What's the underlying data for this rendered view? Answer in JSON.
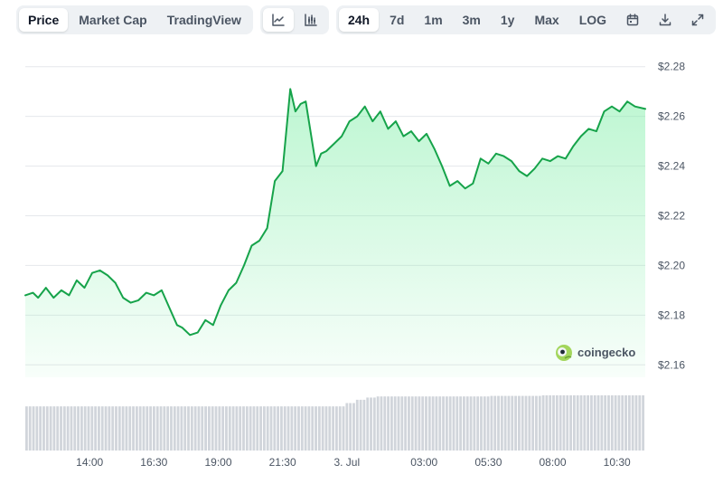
{
  "toolbar": {
    "views": [
      {
        "label": "Price",
        "active": true
      },
      {
        "label": "Market Cap",
        "active": false
      },
      {
        "label": "TradingView",
        "active": false
      }
    ],
    "chart_types": [
      {
        "icon": "line-chart-icon",
        "active": true
      },
      {
        "icon": "candlestick-chart-icon",
        "active": false
      }
    ],
    "ranges": [
      {
        "label": "24h",
        "active": true
      },
      {
        "label": "7d",
        "active": false
      },
      {
        "label": "1m",
        "active": false
      },
      {
        "label": "3m",
        "active": false
      },
      {
        "label": "1y",
        "active": false
      },
      {
        "label": "Max",
        "active": false
      },
      {
        "label": "LOG",
        "active": false
      }
    ],
    "actions": [
      "calendar-icon",
      "download-icon",
      "expand-icon"
    ]
  },
  "watermark": {
    "text": "coingecko"
  },
  "colors": {
    "line": "#16a34a",
    "fill": "#86efac",
    "volume": "#d1d5db",
    "grid": "#e5e7eb"
  },
  "chart_data": {
    "type": "area",
    "title": "",
    "xlabel": "",
    "ylabel": "",
    "ylim": [
      2.155,
      2.285
    ],
    "yticks": [
      "$2.28",
      "$2.26",
      "$2.24",
      "$2.22",
      "$2.20",
      "$2.18",
      "$2.16"
    ],
    "ytick_values": [
      2.28,
      2.26,
      2.24,
      2.22,
      2.2,
      2.18,
      2.16
    ],
    "xticks": [
      "14:00",
      "16:30",
      "19:00",
      "21:30",
      "3. Jul",
      "03:00",
      "05:30",
      "08:00",
      "10:30"
    ],
    "xtick_hours": [
      14,
      16.5,
      19,
      21.5,
      24,
      27,
      29.5,
      32,
      34.5
    ],
    "x_range_hours": [
      11.5,
      35.6
    ],
    "grid": true,
    "series": [
      {
        "x": [
          11.5,
          11.8,
          12.0,
          12.3,
          12.6,
          12.9,
          13.2,
          13.5,
          13.8,
          14.1,
          14.4,
          14.7,
          15.0,
          15.3,
          15.6,
          15.9,
          16.2,
          16.5,
          16.8,
          17.1,
          17.4,
          17.6,
          17.9,
          18.2,
          18.5,
          18.8,
          19.1,
          19.4,
          19.7,
          20.0,
          20.3,
          20.6,
          20.9,
          21.2,
          21.5,
          21.8,
          22.0,
          22.2,
          22.4,
          22.6,
          22.8,
          23.0,
          23.2,
          23.5,
          23.8,
          24.1,
          24.4,
          24.7,
          25.0,
          25.3,
          25.6,
          25.9,
          26.2,
          26.5,
          26.8,
          27.1,
          27.4,
          27.7,
          28.0,
          28.3,
          28.6,
          28.9,
          29.2,
          29.5,
          29.8,
          30.1,
          30.4,
          30.7,
          31.0,
          31.3,
          31.6,
          31.9,
          32.2,
          32.5,
          32.8,
          33.1,
          33.4,
          33.7,
          34.0,
          34.3,
          34.6,
          34.9,
          35.2,
          35.6
        ],
        "values": [
          2.188,
          2.189,
          2.187,
          2.191,
          2.187,
          2.19,
          2.188,
          2.194,
          2.191,
          2.197,
          2.198,
          2.196,
          2.193,
          2.187,
          2.185,
          2.186,
          2.189,
          2.188,
          2.19,
          2.183,
          2.176,
          2.175,
          2.172,
          2.173,
          2.178,
          2.176,
          2.184,
          2.19,
          2.193,
          2.2,
          2.208,
          2.21,
          2.215,
          2.234,
          2.238,
          2.271,
          2.262,
          2.265,
          2.266,
          2.253,
          2.24,
          2.245,
          2.246,
          2.249,
          2.252,
          2.258,
          2.26,
          2.264,
          2.258,
          2.262,
          2.255,
          2.258,
          2.252,
          2.254,
          2.25,
          2.253,
          2.247,
          2.24,
          2.232,
          2.234,
          2.231,
          2.233,
          2.243,
          2.241,
          2.245,
          2.244,
          2.242,
          2.238,
          2.236,
          2.239,
          2.243,
          2.242,
          2.244,
          2.243,
          2.248,
          2.252,
          2.255,
          2.254,
          2.262,
          2.264,
          2.262,
          2.266,
          2.264,
          2.263
        ]
      }
    ],
    "volume_x_range_hours": [
      11.5,
      35.6
    ],
    "volume_values_relative": [
      0.8,
      0.8,
      0.8,
      0.8,
      0.8,
      0.8,
      0.8,
      0.8,
      0.8,
      0.8,
      0.8,
      0.8,
      0.8,
      0.8,
      0.8,
      0.8,
      0.8,
      0.8,
      0.8,
      0.8,
      0.8,
      0.8,
      0.8,
      0.8,
      0.8,
      0.8,
      0.8,
      0.8,
      0.8,
      0.8,
      0.8,
      0.86,
      0.92,
      0.96,
      0.98,
      0.98,
      0.98,
      0.98,
      0.98,
      0.98,
      0.98,
      0.98,
      0.98,
      0.98,
      0.98,
      0.99,
      0.99,
      0.99,
      0.99,
      0.99,
      1.0,
      1.0,
      1.0,
      1.0,
      1.0,
      1.0,
      1.0,
      1.0,
      1.0,
      1.0
    ]
  }
}
